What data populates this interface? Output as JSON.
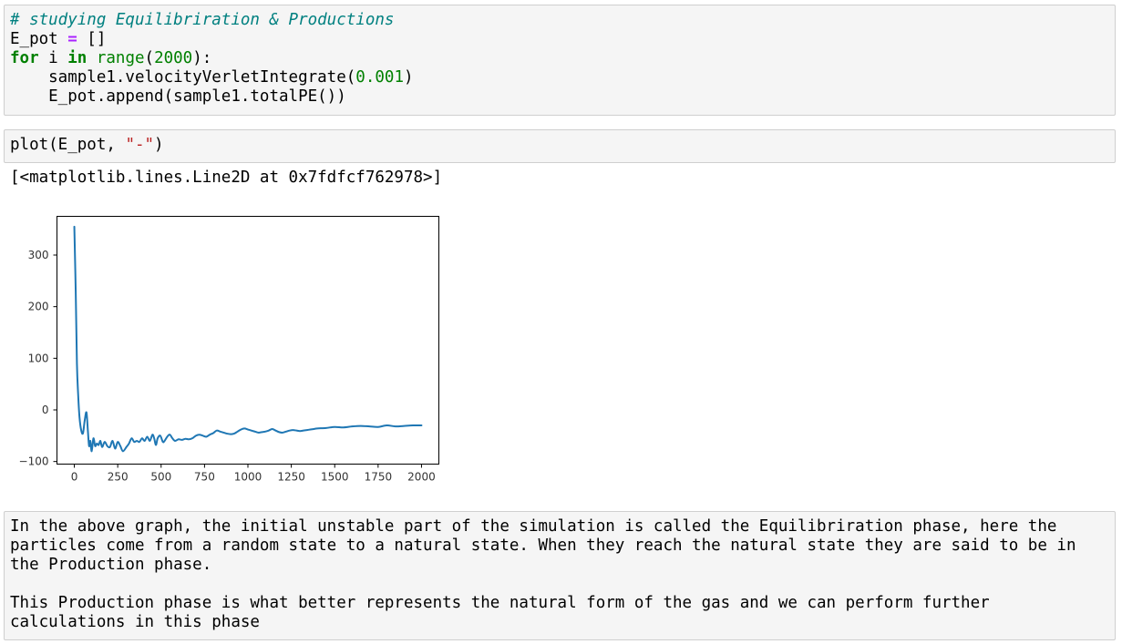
{
  "cells": {
    "code1": {
      "comment": "# studying Equilibriration & Productions",
      "line2_var": "E_pot ",
      "line2_op": "=",
      "line2_rest": " []",
      "line3_for": "for",
      "line3_i": " i ",
      "line3_in": "in",
      "line3_sp": " ",
      "line3_range": "range",
      "line3_open": "(",
      "line3_num": "2000",
      "line3_close": "):",
      "line4_pre": "    sample1.velocityVerletIntegrate(",
      "line4_num": "0.001",
      "line4_post": ")",
      "line5": "    E_pot.append(sample1.totalPE())"
    },
    "code2": {
      "pre": "plot(E_pot, ",
      "str": "\"-\"",
      "post": ")"
    },
    "output_text": "[<matplotlib.lines.Line2D at 0x7fdfcf762978>]",
    "markdown": {
      "para1_line1": "In the above graph, the initial unstable part of the simulation is called the Equilibriration phase, here the",
      "para1_line2": "particles come from a random state to a natural state. When they reach the natural state they are said to be in",
      "para1_line3": "the Production phase.",
      "para2_line1": "This Production phase is what better represents the natural form of the gas and we can perform further",
      "para2_line2": "calculations in this phase"
    }
  },
  "chart_data": {
    "type": "line",
    "xlim": [
      -100,
      2100
    ],
    "ylim": [
      -105,
      375
    ],
    "xticks": [
      0,
      250,
      500,
      750,
      1000,
      1250,
      1500,
      1750,
      2000
    ],
    "xtick_labels": [
      "0",
      "250",
      "500",
      "750",
      "1000",
      "1250",
      "1500",
      "1750",
      "2000"
    ],
    "yticks": [
      -100,
      0,
      100,
      200,
      300
    ],
    "ytick_labels": [
      "−100",
      "0",
      "100",
      "200",
      "300"
    ],
    "grid": false,
    "line_color": "#1f77b4",
    "x": [
      0,
      8,
      15,
      22,
      30,
      40,
      50,
      60,
      70,
      78,
      85,
      92,
      100,
      110,
      120,
      130,
      140,
      150,
      160,
      175,
      190,
      205,
      220,
      235,
      250,
      265,
      280,
      300,
      315,
      330,
      345,
      360,
      375,
      390,
      405,
      420,
      435,
      450,
      460,
      470,
      480,
      495,
      510,
      520,
      535,
      550,
      565,
      580,
      600,
      620,
      640,
      660,
      680,
      700,
      720,
      740,
      760,
      780,
      800,
      820,
      840,
      860,
      880,
      900,
      920,
      940,
      960,
      980,
      1000,
      1020,
      1040,
      1060,
      1080,
      1100,
      1120,
      1140,
      1160,
      1180,
      1200,
      1220,
      1240,
      1260,
      1280,
      1300,
      1320,
      1340,
      1360,
      1380,
      1400,
      1450,
      1500,
      1550,
      1600,
      1650,
      1700,
      1750,
      1800,
      1850,
      1900,
      1950,
      2000
    ],
    "y": [
      355,
      230,
      90,
      30,
      -15,
      -40,
      -45,
      -20,
      -5,
      -40,
      -70,
      -60,
      -80,
      -55,
      -70,
      -65,
      -68,
      -60,
      -72,
      -62,
      -70,
      -72,
      -60,
      -75,
      -62,
      -70,
      -80,
      -72,
      -65,
      -55,
      -62,
      -60,
      -62,
      -55,
      -60,
      -52,
      -60,
      -48,
      -55,
      -68,
      -55,
      -50,
      -62,
      -60,
      -52,
      -48,
      -55,
      -60,
      -57,
      -58,
      -56,
      -57,
      -55,
      -50,
      -48,
      -50,
      -52,
      -48,
      -45,
      -40,
      -42,
      -44,
      -46,
      -47,
      -46,
      -42,
      -38,
      -36,
      -38,
      -40,
      -42,
      -44,
      -43,
      -42,
      -40,
      -37,
      -40,
      -43,
      -44,
      -42,
      -40,
      -39,
      -40,
      -41,
      -40,
      -39,
      -38,
      -37,
      -36,
      -35,
      -33,
      -34,
      -32,
      -31,
      -32,
      -33,
      -30,
      -32,
      -31,
      -30,
      -30
    ]
  }
}
